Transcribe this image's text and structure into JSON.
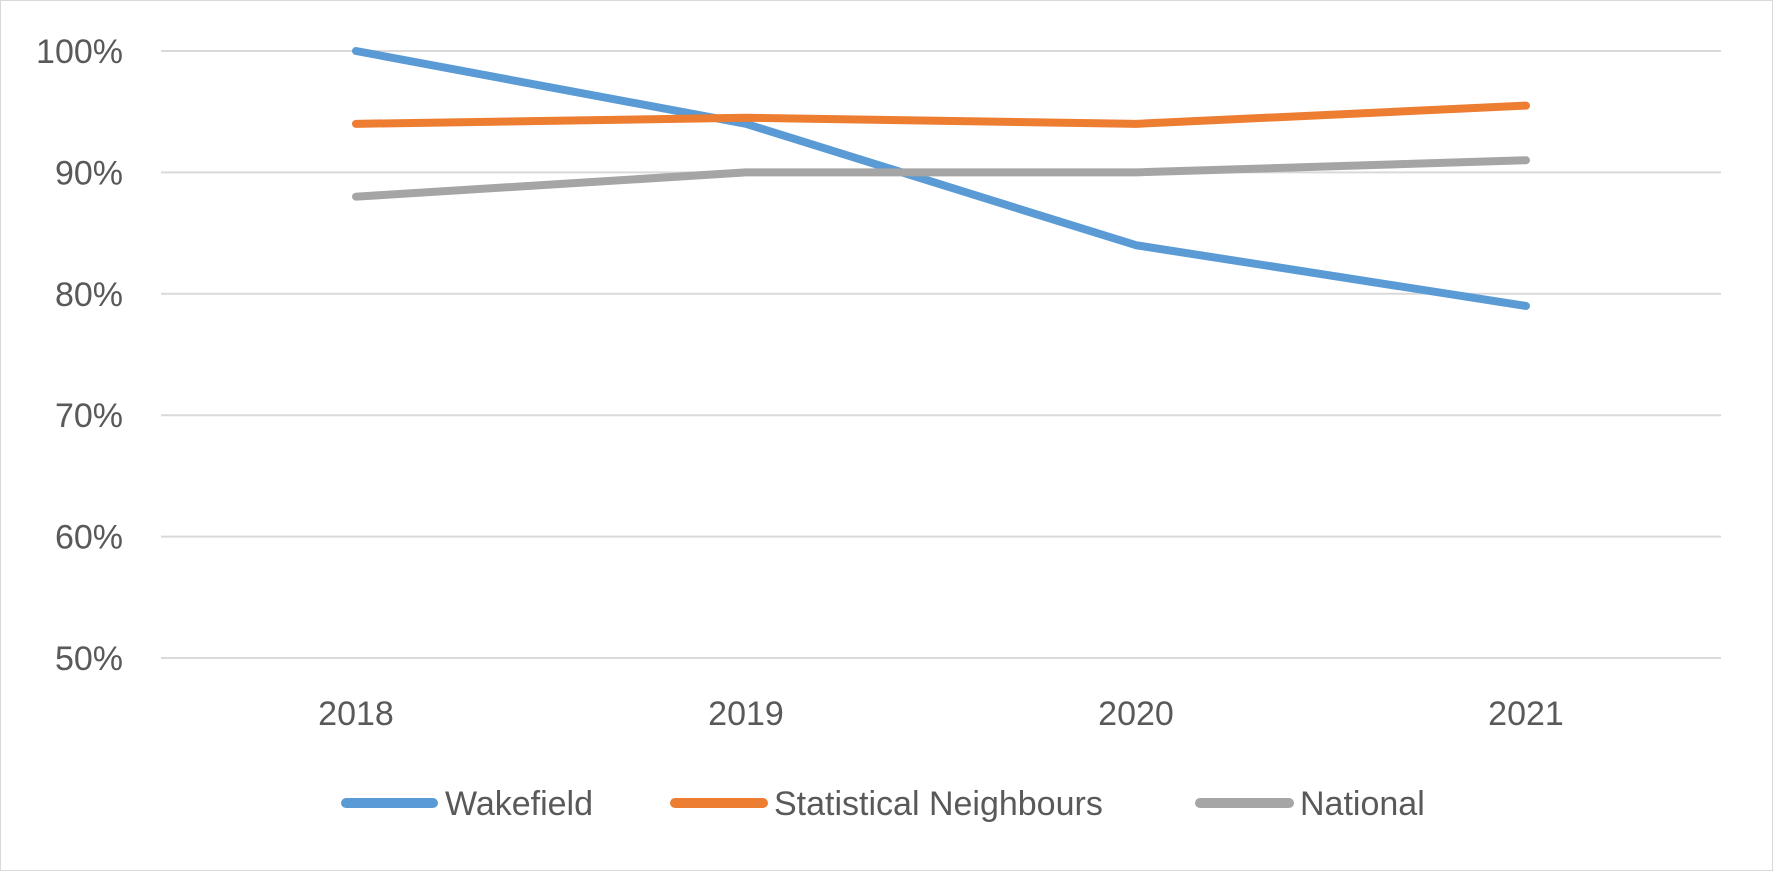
{
  "chart_data": {
    "type": "line",
    "title": "",
    "xlabel": "",
    "ylabel": "",
    "categories": [
      "2018",
      "2019",
      "2020",
      "2021"
    ],
    "y_ticks": [
      "50%",
      "60%",
      "70%",
      "80%",
      "90%",
      "100%"
    ],
    "ylim": [
      50,
      100
    ],
    "grid": true,
    "legend_position": "bottom",
    "series": [
      {
        "name": "Wakefield",
        "color": "#5b9bd5",
        "values": [
          100,
          94,
          84,
          79
        ]
      },
      {
        "name": "Statistical Neighbours",
        "color": "#ed7d31",
        "values": [
          94,
          94.5,
          94,
          95.5
        ]
      },
      {
        "name": "National",
        "color": "#a5a5a5",
        "values": [
          88,
          90,
          90,
          91
        ]
      }
    ]
  }
}
